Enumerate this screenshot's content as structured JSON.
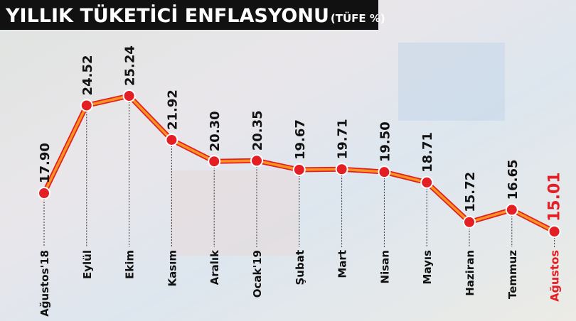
{
  "chart_data": {
    "type": "line",
    "title": "YILLIK TÜKETİCİ ENFLASYONU",
    "subtitle": "(TÜFE %)",
    "categories": [
      "Ağustos'18",
      "Eylül",
      "Ekim",
      "Kasım",
      "Aralık",
      "Ocak'19",
      "Şubat",
      "Mart",
      "Nisan",
      "Mayıs",
      "Haziran",
      "Temmuz",
      "Ağustos"
    ],
    "values": [
      17.9,
      24.52,
      25.24,
      21.92,
      20.3,
      20.35,
      19.67,
      19.71,
      19.5,
      18.71,
      15.72,
      16.65,
      15.01
    ],
    "value_labels": [
      "17.90",
      "24.52",
      "25.24",
      "21.92",
      "20.30",
      "20.35",
      "19.67",
      "19.71",
      "19.50",
      "18.71",
      "15.72",
      "16.65",
      "15.01"
    ],
    "color": "#f7941d",
    "marker_color": "#e31e24"
  }
}
